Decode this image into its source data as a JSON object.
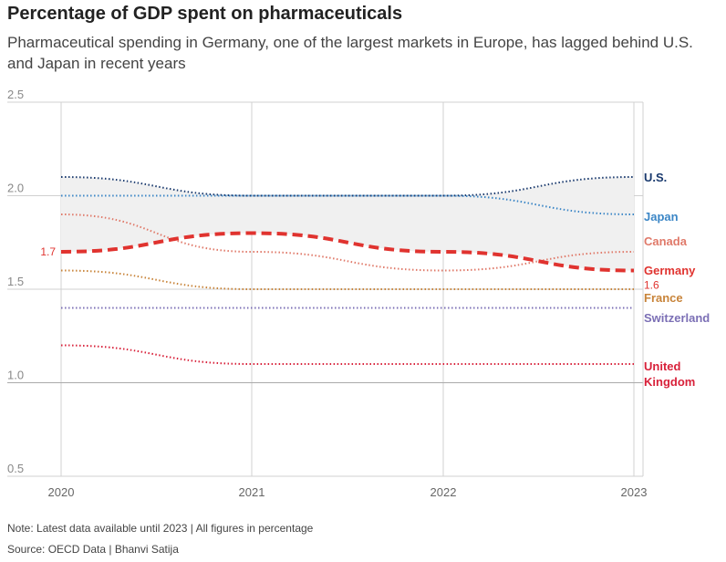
{
  "header": {
    "title": "Percentage of GDP spent on pharmaceuticals",
    "subtitle": "Pharmaceutical spending in Germany, one of the largest markets in Europe, has lagged behind U.S. and Japan in recent years"
  },
  "footer": {
    "note": "Note: Latest data available until 2023 | All figures in percentage",
    "source": "Source: OECD Data | Bhanvi Satija"
  },
  "chart_data": {
    "type": "line",
    "x": [
      "2020",
      "2021",
      "2022",
      "2023"
    ],
    "ylim": [
      0.5,
      2.5
    ],
    "yticks": [
      "0.5",
      "1.0",
      "1.5",
      "2.0",
      "2.5"
    ],
    "grid": true,
    "shaded_band": "between U.S. and Germany",
    "series": [
      {
        "name": "U.S.",
        "label_lines": [
          "U.S."
        ],
        "values": [
          2.1,
          2.0,
          2.0,
          2.1
        ],
        "color": "#1a3a6e",
        "style": "dotted"
      },
      {
        "name": "Japan",
        "label_lines": [
          "Japan"
        ],
        "values": [
          2.0,
          2.0,
          2.0,
          1.9
        ],
        "color": "#3b86c6",
        "style": "dotted"
      },
      {
        "name": "Canada",
        "label_lines": [
          "Canada"
        ],
        "values": [
          1.9,
          1.7,
          1.6,
          1.7
        ],
        "color": "#e07a6a",
        "style": "dotted"
      },
      {
        "name": "Germany",
        "label_lines": [
          "Germany"
        ],
        "values": [
          1.7,
          1.8,
          1.7,
          1.6
        ],
        "color": "#e0332f",
        "style": "dashed"
      },
      {
        "name": "France",
        "label_lines": [
          "France"
        ],
        "values": [
          1.6,
          1.5,
          1.5,
          1.5
        ],
        "color": "#c8843a",
        "style": "dotted"
      },
      {
        "name": "Switzerland",
        "label_lines": [
          "Switzerland"
        ],
        "values": [
          1.4,
          1.4,
          1.4,
          1.4
        ],
        "color": "#7b6fb5",
        "style": "dotted"
      },
      {
        "name": "United Kingdom",
        "label_lines": [
          "United",
          "Kingdom"
        ],
        "values": [
          1.2,
          1.1,
          1.1,
          1.1
        ],
        "color": "#d8213a",
        "style": "dotted"
      }
    ],
    "annotations": [
      {
        "series": "Germany",
        "text": "1.7",
        "at": "2020"
      },
      {
        "series": "Germany",
        "text": "1.6",
        "at": "2023"
      }
    ]
  }
}
